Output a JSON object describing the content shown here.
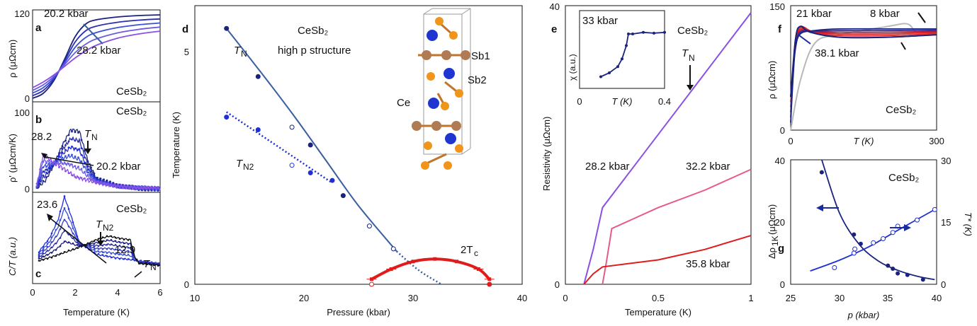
{
  "colors": {
    "dark_blue": "#1a237e",
    "blue": "#1f2fd6",
    "mid_blue": "#3a4fd8",
    "purple": "#8a4fe6",
    "violet": "#6b5be0",
    "pink": "#e85a8a",
    "red": "#e01b1b",
    "grey": "#b8b8b8",
    "steel": "#3a5fa0",
    "black": "#111111"
  },
  "panels": {
    "a": {
      "label": "a",
      "material": "CeSb₂",
      "ylabel": "ρ  (μΩcm)",
      "yticks": [
        "0",
        "120"
      ],
      "ann_top": "20.2 kbar",
      "ann_bottom": "28.2 kbar"
    },
    "b": {
      "label": "b",
      "material": "CeSb₂",
      "ylabel": "ρ'  (μΩcm/K)",
      "yticks": [
        "0",
        "100"
      ],
      "ann_left": "28.2",
      "ann_tn": "T",
      "ann_tn_sub": "N",
      "ann_right": "20.2 kbar"
    },
    "c": {
      "label": "c",
      "material": "CeSb₂",
      "ylabel": "C/T  (a.u.)",
      "xlabel": "Temperature  (K)",
      "xticks": [
        "0",
        "2",
        "4",
        "6"
      ],
      "ann_left": "23.6",
      "ann_tn2": "T",
      "ann_tn2_sub": "N2",
      "ann_mid": "12.9",
      "ann_tn": "T",
      "ann_tn_sub": "N"
    },
    "d": {
      "label": "d",
      "title_line1": "CeSb₂",
      "title_line2": "high p structure",
      "xlabel": "Pressure  (kbar)",
      "ylabel": "Temperature  (K)",
      "xticks": [
        "10",
        "20",
        "30",
        "40"
      ],
      "yticks": [
        "0",
        "5"
      ],
      "label_tn": "T",
      "label_tn_sub": "N",
      "label_tn2": "T",
      "label_tn2_sub": "N2",
      "label_tc": "2T",
      "label_tc_sub": "c",
      "struct_ce": "Ce",
      "struct_sb1": "Sb1",
      "struct_sb2": "Sb2"
    },
    "e": {
      "label": "e",
      "material": "CeSb₂",
      "xlabel": "Temperature  (K)",
      "ylabel": "Resistivity  (μΩcm)",
      "xticks": [
        "0",
        "0.5",
        "1"
      ],
      "yticks": [
        "0",
        "40"
      ],
      "ann_tn": "T",
      "ann_tn_sub": "N",
      "curve1": "28.2 kbar",
      "curve2": "32.2 kbar",
      "curve3": "35.8 kbar",
      "inset": {
        "pressure": "33 kbar",
        "ylabel": "χ  (a.u.)",
        "xlabel": "T  (K)",
        "xticks": [
          "0",
          "0.4"
        ]
      }
    },
    "f": {
      "label": "f",
      "material": "CeSb₂",
      "ylabel": "ρ  (μΩcm)",
      "xlabel": "T  (K)",
      "xticks": [
        "0",
        "300"
      ],
      "yticks": [
        "0",
        "150"
      ],
      "ann_21": "21 kbar",
      "ann_8": "8 kbar",
      "ann_381": "38.1 kbar"
    },
    "g": {
      "label": "g",
      "material": "CeSb₂",
      "xlabel": "p  (kbar)",
      "ylabel_left": "Δρ",
      "ylabel_left_sub": "1K",
      "ylabel_left_unit": "  (μΩcm)",
      "ylabel_right": "T*  (K)",
      "xticks": [
        "25",
        "30",
        "35",
        "40"
      ],
      "yticks_left": [
        "0",
        "20",
        "40"
      ],
      "yticks_right": [
        "0",
        "15",
        "30"
      ]
    }
  },
  "chart_data": [
    {
      "panel": "a",
      "type": "line",
      "xlabel": "Temperature  (K)",
      "ylabel": "ρ  (μΩcm)",
      "xlim": [
        0,
        6
      ],
      "ylim": [
        0,
        130
      ],
      "series": [
        {
          "name": "20.2 kbar",
          "x": [
            0,
            0.5,
            1,
            1.5,
            2,
            2.5,
            3,
            4,
            5,
            6
          ],
          "y": [
            5,
            12,
            30,
            60,
            92,
            110,
            116,
            120,
            122,
            123
          ]
        },
        {
          "name": "28.2 kbar",
          "x": [
            0,
            0.5,
            1,
            1.5,
            2,
            2.5,
            3,
            4,
            5,
            6
          ],
          "y": [
            20,
            28,
            38,
            50,
            62,
            72,
            80,
            90,
            96,
            100
          ]
        }
      ]
    },
    {
      "panel": "b",
      "type": "line",
      "xlabel": "Temperature  (K)",
      "ylabel": "ρ'  (μΩcm/K)",
      "xlim": [
        0,
        6
      ],
      "ylim": [
        0,
        110
      ],
      "series": [
        {
          "name": "20.2 kbar",
          "x": [
            0.2,
            0.6,
            1,
            1.4,
            1.8,
            2.2,
            2.6,
            3,
            4,
            5,
            6
          ],
          "y": [
            5,
            15,
            35,
            60,
            80,
            78,
            40,
            18,
            8,
            5,
            4
          ]
        },
        {
          "name": "28.2 kbar",
          "x": [
            0.2,
            0.5,
            0.8,
            1.2,
            1.6,
            2,
            3,
            4,
            5,
            6
          ],
          "y": [
            10,
            48,
            42,
            35,
            28,
            20,
            12,
            8,
            6,
            5
          ]
        }
      ]
    },
    {
      "panel": "c",
      "type": "line",
      "xlabel": "Temperature  (K)",
      "ylabel": "C/T  (a.u.)",
      "xlim": [
        0,
        6
      ],
      "series": [
        {
          "name": "23.6",
          "x": [
            0.3,
            0.8,
            1.2,
            1.5,
            1.8,
            2.2,
            3,
            4,
            5,
            6
          ],
          "y": [
            0.35,
            0.5,
            0.7,
            0.95,
            0.75,
            0.45,
            0.32,
            0.28,
            0.25,
            0.22
          ]
        },
        {
          "name": "12.9",
          "x": [
            0.3,
            1,
            2,
            3,
            3.6,
            4,
            4.6,
            4.8,
            5,
            6
          ],
          "y": [
            0.25,
            0.3,
            0.38,
            0.48,
            0.52,
            0.5,
            0.48,
            0.3,
            0.22,
            0.2
          ]
        }
      ]
    },
    {
      "panel": "d",
      "type": "scatter",
      "xlabel": "Pressure  (kbar)",
      "ylabel": "Temperature  (K)",
      "xlim": [
        10,
        40
      ],
      "ylim": [
        0,
        5.5
      ],
      "series": [
        {
          "name": "T_N",
          "x": [
            12.9,
            15.8,
            18.9,
            20.6,
            23.6,
            26,
            28.2
          ],
          "y": [
            5.05,
            4.1,
            3.1,
            2.75,
            1.75,
            1.15,
            0.7
          ]
        },
        {
          "name": "T_N2",
          "x": [
            12.9,
            15.8,
            18.9,
            20.6,
            22.6
          ],
          "y": [
            3.3,
            3.05,
            2.35,
            2.2,
            2.05
          ]
        },
        {
          "name": "2T_c",
          "x": [
            26.2,
            28,
            30,
            32,
            34,
            36,
            37
          ],
          "y": [
            0.1,
            0.3,
            0.45,
            0.5,
            0.45,
            0.3,
            0.1
          ]
        }
      ]
    },
    {
      "panel": "e",
      "type": "line",
      "xlabel": "Temperature  (K)",
      "ylabel": "Resistivity  (μΩcm)",
      "xlim": [
        0,
        1
      ],
      "ylim": [
        0,
        40
      ],
      "series": [
        {
          "name": "28.2 kbar",
          "x": [
            0.1,
            0.15,
            0.2,
            0.4,
            0.6,
            0.8,
            1
          ],
          "y": [
            0,
            5,
            11,
            18,
            25,
            32,
            39
          ]
        },
        {
          "name": "32.2 kbar",
          "x": [
            0.2,
            0.22,
            0.25,
            0.5,
            0.75,
            1
          ],
          "y": [
            0,
            3,
            8,
            11,
            13.5,
            16.5
          ]
        },
        {
          "name": "35.8 kbar",
          "x": [
            0.1,
            0.15,
            0.2,
            0.5,
            0.75,
            1
          ],
          "y": [
            0,
            1.5,
            2.5,
            3.5,
            5,
            7
          ]
        }
      ]
    },
    {
      "panel": "f",
      "type": "line",
      "xlabel": "T  (K)",
      "ylabel": "ρ  (μΩcm)",
      "xlim": [
        0,
        300
      ],
      "ylim": [
        0,
        150
      ],
      "series": [
        {
          "name": "21 kbar",
          "x": [
            0,
            10,
            20,
            40,
            100,
            200,
            300
          ],
          "y": [
            40,
            110,
            125,
            118,
            112,
            112,
            115
          ]
        },
        {
          "name": "38.1 kbar",
          "x": [
            0,
            5,
            10,
            20,
            50,
            100,
            200,
            300
          ],
          "y": [
            5,
            60,
            95,
            112,
            116,
            118,
            118,
            118
          ]
        },
        {
          "name": "8 kbar",
          "x": [
            0,
            20,
            50,
            100,
            200,
            240,
            260,
            300
          ],
          "y": [
            0,
            60,
            105,
            115,
            125,
            128,
            118,
            120
          ]
        }
      ]
    },
    {
      "panel": "g",
      "type": "scatter",
      "xlabel": "p  (kbar)",
      "xlim": [
        25,
        40
      ],
      "series": [
        {
          "name": "Δρ_1K (μΩcm)",
          "x": [
            28.2,
            31.5,
            32.2,
            35,
            35.5,
            36,
            37,
            38.6
          ],
          "y": [
            36,
            16,
            13,
            6,
            5,
            3.5,
            3,
            1.5
          ]
        },
        {
          "name": "T* (K)",
          "x": [
            29.5,
            31.5,
            31.6,
            33.5,
            34.5,
            35.5,
            36,
            38,
            39.8
          ],
          "y": [
            4,
            7.5,
            8.5,
            10,
            11,
            12.5,
            14,
            15.5,
            18
          ]
        }
      ]
    }
  ]
}
